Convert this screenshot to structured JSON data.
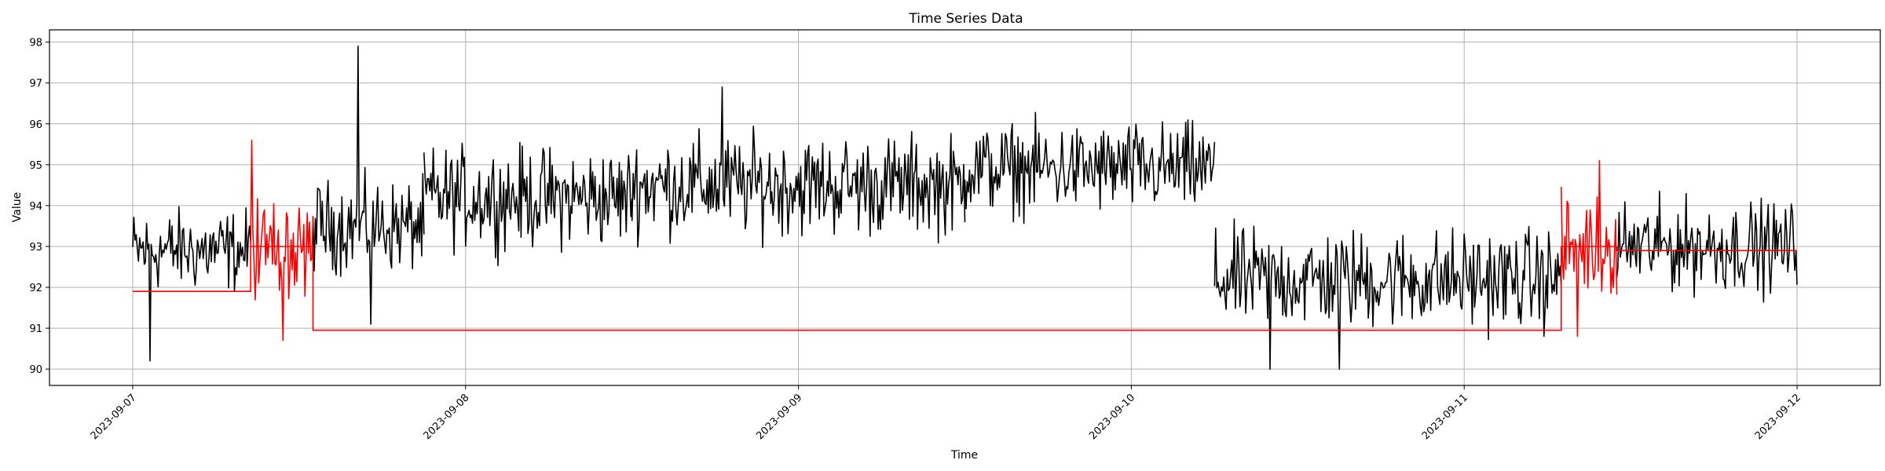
{
  "chart_data": {
    "type": "line",
    "title": "Time Series Data",
    "xlabel": "Time",
    "ylabel": "Value",
    "x_tick_labels": [
      "2023-09-07",
      "2023-09-08",
      "2023-09-09",
      "2023-09-10",
      "2023-09-11",
      "2023-09-12"
    ],
    "y_ticks": [
      90,
      91,
      92,
      93,
      94,
      95,
      96,
      97,
      98
    ],
    "xlim": [
      "2023-09-06T18:00",
      "2023-09-12T06:00"
    ],
    "ylim": [
      89.6,
      98.3
    ],
    "grid": true,
    "legend": "none",
    "colors": {
      "main": "#000000",
      "highlight": "#ff0000",
      "grid": "#b0b0b0"
    },
    "series": [
      {
        "color": "#000000",
        "style": "noisy",
        "segments": [
          {
            "start": "2023-09-07T00:00",
            "end": "2023-09-07T08:30",
            "mean": 92.9,
            "amplitude": 0.9
          },
          {
            "start": "2023-09-07T13:00",
            "end": "2023-09-07T21:00",
            "mean": 93.5,
            "amplitude": 1.0
          },
          {
            "start": "2023-09-07T21:00",
            "end": "2023-09-08T12:00",
            "mean": 94.2,
            "amplitude": 1.1
          },
          {
            "start": "2023-09-08T12:00",
            "end": "2023-09-09T12:00",
            "mean": 94.5,
            "amplitude": 1.1
          },
          {
            "start": "2023-09-09T12:00",
            "end": "2023-09-10T06:00",
            "mean": 94.9,
            "amplitude": 1.0
          },
          {
            "start": "2023-09-10T06:00",
            "end": "2023-09-11T07:00",
            "mean": 92.2,
            "amplitude": 1.1
          },
          {
            "start": "2023-09-11T11:00",
            "end": "2023-09-12T00:00",
            "mean": 93.0,
            "amplitude": 1.0
          }
        ],
        "spikes": [
          {
            "x": "2023-09-07T16:15",
            "y": 97.9
          },
          {
            "x": "2023-09-07T17:10",
            "y": 91.1
          },
          {
            "x": "2023-09-08T18:30",
            "y": 96.9
          },
          {
            "x": "2023-09-10T10:00",
            "y": 90.0
          },
          {
            "x": "2023-09-10T15:00",
            "y": 90.0
          },
          {
            "x": "2023-09-07T01:15",
            "y": 90.2
          }
        ]
      },
      {
        "color": "#ff0000",
        "style": "noisy",
        "segments": [
          {
            "start": "2023-09-07T08:30",
            "end": "2023-09-07T13:00",
            "mean": 93.0,
            "amplitude": 1.1
          },
          {
            "start": "2023-09-11T07:00",
            "end": "2023-09-11T11:00",
            "mean": 93.0,
            "amplitude": 1.1
          }
        ],
        "spikes": [
          {
            "x": "2023-09-07T08:35",
            "y": 95.6
          },
          {
            "x": "2023-09-07T10:50",
            "y": 90.7
          },
          {
            "x": "2023-09-11T08:10",
            "y": 90.8
          },
          {
            "x": "2023-09-11T09:45",
            "y": 95.1
          }
        ]
      },
      {
        "color": "#ff0000",
        "style": "step",
        "points": [
          {
            "x": "2023-09-07T00:00",
            "y": 91.9
          },
          {
            "x": "2023-09-07T08:30",
            "y": 91.9
          },
          {
            "x": "2023-09-07T08:30",
            "y": 93.0
          },
          {
            "x": "2023-09-07T13:00",
            "y": 93.0
          },
          {
            "x": "2023-09-07T13:00",
            "y": 90.95
          },
          {
            "x": "2023-09-11T07:00",
            "y": 90.95
          },
          {
            "x": "2023-09-11T07:00",
            "y": 93.0
          },
          {
            "x": "2023-09-11T11:00",
            "y": 93.0
          },
          {
            "x": "2023-09-11T11:00",
            "y": 92.9
          },
          {
            "x": "2023-09-12T00:00",
            "y": 92.9
          }
        ]
      }
    ]
  }
}
